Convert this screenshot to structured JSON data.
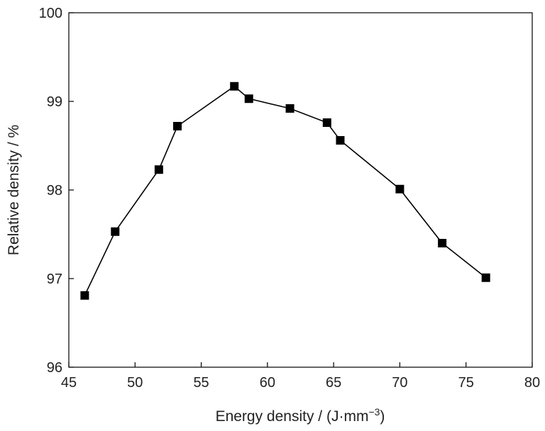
{
  "chart_data": {
    "type": "line",
    "title": "",
    "xlabel": "Energy density / (J·mm",
    "xlabel_superscript": "−3",
    "xlabel_suffix": ")",
    "ylabel": "Relative density / %",
    "xlim": [
      45,
      80
    ],
    "ylim": [
      96,
      100
    ],
    "xticks": [
      45,
      50,
      55,
      60,
      65,
      70,
      75,
      80
    ],
    "yticks": [
      96,
      97,
      98,
      99,
      100
    ],
    "grid": false,
    "legend": "none",
    "marker": "square",
    "series": [
      {
        "color": "#000000",
        "x": [
          46.2,
          48.5,
          51.8,
          53.2,
          57.5,
          58.6,
          61.7,
          64.5,
          65.5,
          70.0,
          73.2,
          76.5
        ],
        "y": [
          96.81,
          97.53,
          98.23,
          98.72,
          99.17,
          99.03,
          98.92,
          98.76,
          98.56,
          98.01,
          97.4,
          97.01
        ]
      }
    ]
  }
}
